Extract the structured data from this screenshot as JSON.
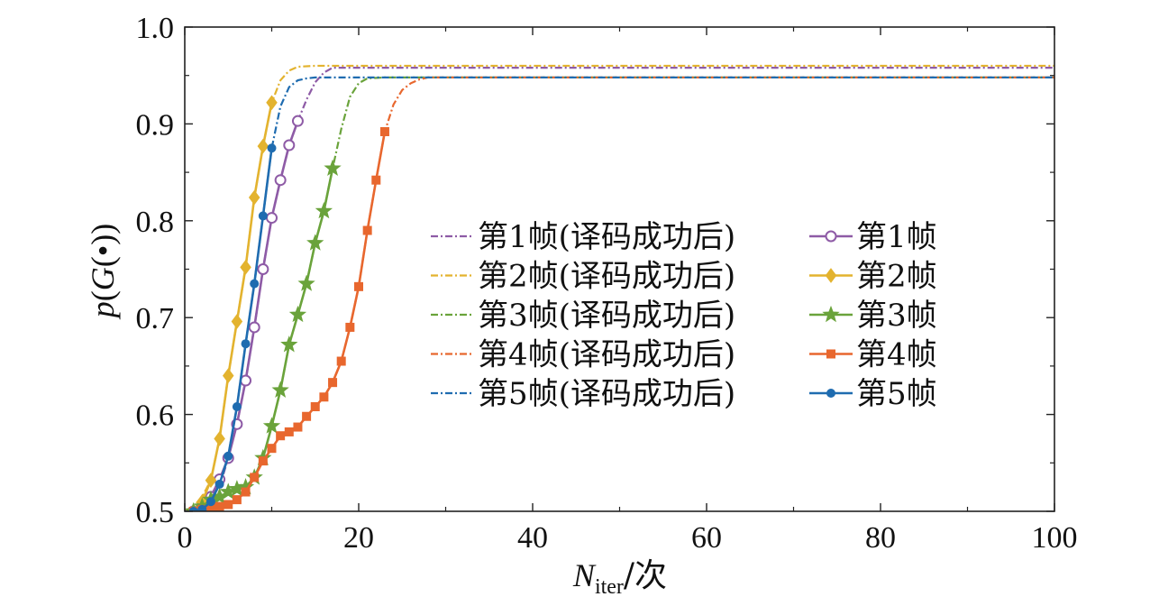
{
  "chart_data": {
    "type": "line",
    "xlabel": {
      "main": "N",
      "sub": "iter",
      "suffix": "/次"
    },
    "ylabel": {
      "pre": "p",
      "mid": "(",
      "g": "G",
      "post": "(•))"
    },
    "xlim": [
      0,
      100
    ],
    "ylim": [
      0.5,
      1.0
    ],
    "xticks": [
      "0",
      "20",
      "40",
      "60",
      "80",
      "100"
    ],
    "yticks": [
      "0.5",
      "0.6",
      "0.7",
      "0.8",
      "0.9",
      "1.0"
    ],
    "grid": false,
    "legend": {
      "placement": "center-right",
      "columns": 2
    },
    "series": [
      {
        "name": "第1帧(译码成功后)",
        "kind": "after",
        "color": "#8e5ba6",
        "dash": "8,3,2,3",
        "x": [
          0,
          2,
          4,
          5,
          6,
          7,
          8,
          9,
          10,
          11,
          12,
          13,
          14,
          15,
          16,
          17,
          20,
          100
        ],
        "y": [
          0.5,
          0.505,
          0.525,
          0.555,
          0.59,
          0.635,
          0.69,
          0.75,
          0.803,
          0.842,
          0.878,
          0.903,
          0.925,
          0.943,
          0.953,
          0.958,
          0.958,
          0.958
        ]
      },
      {
        "name": "第2帧(译码成功后)",
        "kind": "after",
        "color": "#e3b32f",
        "dash": "8,3,2,3",
        "x": [
          0,
          1,
          2,
          3,
          4,
          5,
          6,
          7,
          8,
          9,
          10,
          11,
          12,
          13,
          15,
          17,
          100
        ],
        "y": [
          0.5,
          0.505,
          0.515,
          0.532,
          0.575,
          0.64,
          0.696,
          0.752,
          0.824,
          0.877,
          0.922,
          0.945,
          0.955,
          0.959,
          0.96,
          0.96,
          0.96
        ]
      },
      {
        "name": "第3帧(译码成功后)",
        "kind": "after",
        "color": "#6aa33b",
        "dash": "8,3,2,3",
        "x": [
          0,
          2,
          4,
          5,
          6,
          7,
          8,
          9,
          10,
          11,
          12,
          13,
          14,
          15,
          16,
          17,
          18,
          19,
          20,
          21,
          23,
          100
        ],
        "y": [
          0.5,
          0.505,
          0.515,
          0.52,
          0.523,
          0.525,
          0.535,
          0.555,
          0.588,
          0.625,
          0.672,
          0.703,
          0.735,
          0.777,
          0.81,
          0.854,
          0.895,
          0.928,
          0.942,
          0.947,
          0.948,
          0.948
        ]
      },
      {
        "name": "第4帧(译码成功后)",
        "kind": "after",
        "color": "#e8672e",
        "dash": "8,3,2,3",
        "x": [
          0,
          2,
          4,
          5,
          6,
          7,
          8,
          9,
          10,
          11,
          12,
          13,
          14,
          15,
          16,
          17,
          18,
          19,
          20,
          21,
          22,
          23,
          24,
          25,
          26,
          27,
          28,
          30,
          100
        ],
        "y": [
          0.5,
          0.502,
          0.505,
          0.507,
          0.512,
          0.52,
          0.535,
          0.552,
          0.565,
          0.578,
          0.582,
          0.587,
          0.598,
          0.608,
          0.618,
          0.633,
          0.655,
          0.69,
          0.732,
          0.79,
          0.842,
          0.892,
          0.92,
          0.935,
          0.942,
          0.946,
          0.948,
          0.948,
          0.948
        ]
      },
      {
        "name": "第5帧(译码成功后)",
        "kind": "after",
        "color": "#1f6cb0",
        "dash": "8,3,2,3",
        "x": [
          0,
          1,
          2,
          3,
          4,
          5,
          6,
          7,
          8,
          9,
          10,
          11,
          12,
          13,
          14,
          15,
          100
        ],
        "y": [
          0.5,
          0.5,
          0.502,
          0.51,
          0.528,
          0.557,
          0.608,
          0.673,
          0.735,
          0.805,
          0.875,
          0.918,
          0.938,
          0.945,
          0.947,
          0.948,
          0.948
        ]
      },
      {
        "name": "第1帧",
        "kind": "marker",
        "marker": "circle",
        "color": "#8e5ba6",
        "x": [
          1,
          2,
          3,
          4,
          5,
          6,
          7,
          8,
          9,
          10,
          11,
          12,
          13
        ],
        "y": [
          0.5,
          0.505,
          0.515,
          0.533,
          0.555,
          0.59,
          0.635,
          0.69,
          0.75,
          0.803,
          0.842,
          0.878,
          0.903
        ]
      },
      {
        "name": "第2帧",
        "kind": "marker",
        "marker": "diamond",
        "color": "#e3b32f",
        "x": [
          1,
          2,
          3,
          4,
          5,
          6,
          7,
          8,
          9,
          10
        ],
        "y": [
          0.5,
          0.51,
          0.532,
          0.575,
          0.64,
          0.696,
          0.752,
          0.824,
          0.877,
          0.922
        ]
      },
      {
        "name": "第3帧",
        "kind": "marker",
        "marker": "star",
        "color": "#6aa33b",
        "x": [
          1,
          2,
          3,
          4,
          5,
          6,
          7,
          8,
          9,
          10,
          11,
          12,
          13,
          14,
          15,
          16,
          17
        ],
        "y": [
          0.5,
          0.505,
          0.512,
          0.515,
          0.52,
          0.523,
          0.525,
          0.535,
          0.555,
          0.588,
          0.625,
          0.672,
          0.703,
          0.735,
          0.777,
          0.81,
          0.854
        ]
      },
      {
        "name": "第4帧",
        "kind": "marker",
        "marker": "square",
        "color": "#e8672e",
        "x": [
          1,
          2,
          3,
          4,
          5,
          6,
          7,
          8,
          9,
          10,
          11,
          12,
          13,
          14,
          15,
          16,
          17,
          18,
          19,
          20,
          21,
          22,
          23
        ],
        "y": [
          0.5,
          0.502,
          0.503,
          0.505,
          0.507,
          0.512,
          0.52,
          0.535,
          0.552,
          0.565,
          0.578,
          0.582,
          0.587,
          0.598,
          0.608,
          0.618,
          0.633,
          0.655,
          0.69,
          0.732,
          0.79,
          0.842,
          0.892
        ]
      },
      {
        "name": "第5帧",
        "kind": "marker",
        "marker": "dot",
        "color": "#1f6cb0",
        "x": [
          1,
          2,
          3,
          4,
          5,
          6,
          7,
          8,
          9,
          10
        ],
        "y": [
          0.5,
          0.502,
          0.51,
          0.528,
          0.557,
          0.608,
          0.673,
          0.735,
          0.805,
          0.875
        ]
      }
    ]
  }
}
